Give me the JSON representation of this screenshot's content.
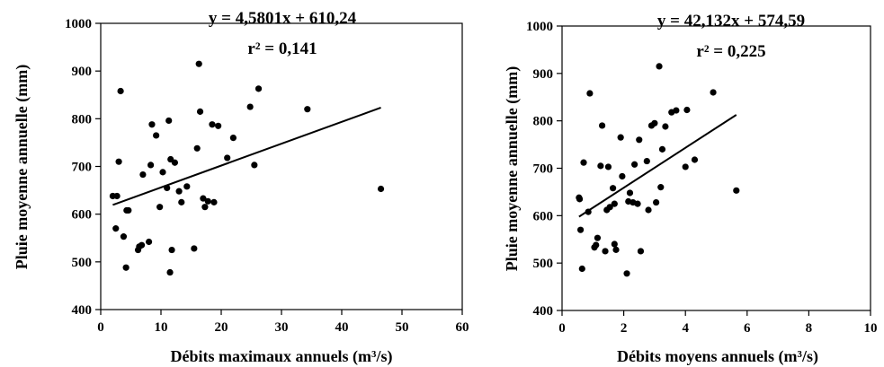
{
  "chart_data": [
    {
      "type": "scatter",
      "xlabel": "Débits maximaux annuels (m³/s)",
      "ylabel": "Pluie moyenne annuelle (mm)",
      "xlim": [
        0,
        60
      ],
      "ylim": [
        400,
        1000
      ],
      "xticks": [
        "0",
        "10",
        "20",
        "30",
        "40",
        "50",
        "60"
      ],
      "yticks": [
        "400",
        "500",
        "600",
        "700",
        "800",
        "900",
        "1000"
      ],
      "equation": "y = 4,5801x + 610,24",
      "r2": "r² = 0,141",
      "trend": {
        "slope": 4.5801,
        "intercept": 610.24,
        "x_range": [
          2,
          46.5
        ]
      },
      "points": [
        [
          2,
          638
        ],
        [
          2.5,
          570
        ],
        [
          2.7,
          638
        ],
        [
          3,
          710
        ],
        [
          3.3,
          858
        ],
        [
          3.8,
          553
        ],
        [
          4.2,
          488
        ],
        [
          4.3,
          608
        ],
        [
          4.6,
          608
        ],
        [
          6.2,
          525
        ],
        [
          6.4,
          532
        ],
        [
          6.8,
          535
        ],
        [
          7,
          683
        ],
        [
          8,
          542
        ],
        [
          8.3,
          703
        ],
        [
          8.5,
          788
        ],
        [
          9.2,
          765
        ],
        [
          9.8,
          615
        ],
        [
          10.3,
          688
        ],
        [
          11,
          655
        ],
        [
          11.3,
          796
        ],
        [
          11.6,
          715
        ],
        [
          11.5,
          478
        ],
        [
          11.8,
          525
        ],
        [
          12.3,
          708
        ],
        [
          13,
          648
        ],
        [
          13.4,
          625
        ],
        [
          14.3,
          658
        ],
        [
          15.5,
          528
        ],
        [
          16,
          738
        ],
        [
          16.3,
          915
        ],
        [
          16.5,
          815
        ],
        [
          17,
          633
        ],
        [
          17.3,
          615
        ],
        [
          17.8,
          627
        ],
        [
          18.5,
          788
        ],
        [
          18.8,
          625
        ],
        [
          19.5,
          785
        ],
        [
          21,
          718
        ],
        [
          22,
          760
        ],
        [
          24.8,
          825
        ],
        [
          25.5,
          703
        ],
        [
          26.2,
          863
        ],
        [
          34.3,
          820
        ],
        [
          46.5,
          653
        ]
      ]
    },
    {
      "type": "scatter",
      "xlabel": "Débits moyens annuels (m³/s)",
      "ylabel": "Pluie moyenne annuelle (mm)",
      "xlim": [
        0,
        10
      ],
      "ylim": [
        400,
        1000
      ],
      "xticks": [
        "0",
        "2",
        "4",
        "6",
        "8",
        "10"
      ],
      "yticks": [
        "400",
        "500",
        "600",
        "700",
        "800",
        "900",
        "1000"
      ],
      "equation": "y = 42,132x + 574,59",
      "r2": "r² = 0,225",
      "trend": {
        "slope": 42.132,
        "intercept": 574.59,
        "x_range": [
          0.55,
          5.65
        ]
      },
      "points": [
        [
          0.55,
          638
        ],
        [
          0.57,
          635
        ],
        [
          0.6,
          570
        ],
        [
          0.65,
          488
        ],
        [
          0.7,
          712
        ],
        [
          0.85,
          608
        ],
        [
          0.9,
          858
        ],
        [
          1.05,
          533
        ],
        [
          1.1,
          538
        ],
        [
          1.15,
          553
        ],
        [
          1.25,
          705
        ],
        [
          1.3,
          790
        ],
        [
          1.4,
          525
        ],
        [
          1.45,
          612
        ],
        [
          1.5,
          703
        ],
        [
          1.55,
          618
        ],
        [
          1.65,
          658
        ],
        [
          1.7,
          540
        ],
        [
          1.7,
          625
        ],
        [
          1.75,
          528
        ],
        [
          1.9,
          765
        ],
        [
          1.95,
          683
        ],
        [
          2.1,
          478
        ],
        [
          2.15,
          630
        ],
        [
          2.2,
          648
        ],
        [
          2.3,
          628
        ],
        [
          2.35,
          708
        ],
        [
          2.45,
          625
        ],
        [
          2.5,
          760
        ],
        [
          2.55,
          525
        ],
        [
          2.75,
          715
        ],
        [
          2.8,
          612
        ],
        [
          2.9,
          790
        ],
        [
          3.0,
          795
        ],
        [
          3.05,
          628
        ],
        [
          3.15,
          915
        ],
        [
          3.2,
          660
        ],
        [
          3.25,
          740
        ],
        [
          3.35,
          788
        ],
        [
          3.55,
          818
        ],
        [
          3.7,
          822
        ],
        [
          4.0,
          703
        ],
        [
          4.05,
          823
        ],
        [
          4.3,
          718
        ],
        [
          4.9,
          860
        ],
        [
          5.65,
          653
        ]
      ]
    }
  ]
}
